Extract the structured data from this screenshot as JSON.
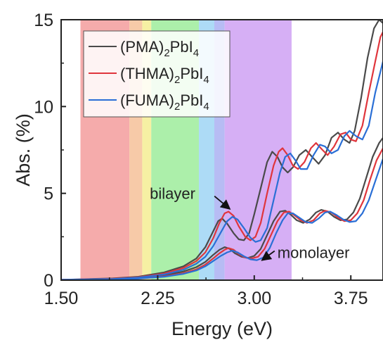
{
  "chart_data": {
    "type": "line",
    "xlabel": "Energy (eV)",
    "ylabel": "Abs. (%)",
    "xlim": [
      1.5,
      4.0
    ],
    "ylim": [
      0,
      15
    ],
    "xticks": [
      1.5,
      2.25,
      3.0,
      3.75
    ],
    "xtick_labels": [
      "1.50",
      "2.25",
      "3.00",
      "3.75"
    ],
    "yticks": [
      0,
      5,
      10,
      15
    ],
    "ytick_labels": [
      "0",
      "5",
      "10",
      "15"
    ],
    "grid": false,
    "legend_position": "top-left",
    "spectral_bands": [
      {
        "from": 1.65,
        "to": 2.03,
        "color": "#f4a6a6"
      },
      {
        "from": 2.03,
        "to": 2.13,
        "color": "#f7c7a3"
      },
      {
        "from": 2.13,
        "to": 2.2,
        "color": "#f6ef9e"
      },
      {
        "from": 2.2,
        "to": 2.57,
        "color": "#a8eea5"
      },
      {
        "from": 2.57,
        "to": 2.69,
        "color": "#a9d9f5"
      },
      {
        "from": 2.69,
        "to": 2.77,
        "color": "#b3b8f3"
      },
      {
        "from": 2.77,
        "to": 3.29,
        "color": "#d4abf4"
      }
    ],
    "series": [
      {
        "name_main": "(PMA)",
        "name_sub": "2",
        "name_mid": "PbI",
        "name_sub2": "4",
        "color": "#4a4a4a",
        "monolayer": [
          [
            1.5,
            0.02
          ],
          [
            1.9,
            0.06
          ],
          [
            2.1,
            0.12
          ],
          [
            2.3,
            0.28
          ],
          [
            2.45,
            0.5
          ],
          [
            2.55,
            0.75
          ],
          [
            2.62,
            1.05
          ],
          [
            2.68,
            1.45
          ],
          [
            2.73,
            1.75
          ],
          [
            2.77,
            1.9
          ],
          [
            2.81,
            1.8
          ],
          [
            2.85,
            1.55
          ],
          [
            2.9,
            1.35
          ],
          [
            2.95,
            1.28
          ],
          [
            3.0,
            1.4
          ],
          [
            3.05,
            1.8
          ],
          [
            3.1,
            2.6
          ],
          [
            3.15,
            3.4
          ],
          [
            3.2,
            3.95
          ],
          [
            3.24,
            4.0
          ],
          [
            3.28,
            3.8
          ],
          [
            3.33,
            3.45
          ],
          [
            3.38,
            3.3
          ],
          [
            3.43,
            3.5
          ],
          [
            3.48,
            3.9
          ],
          [
            3.52,
            4.05
          ],
          [
            3.57,
            3.95
          ],
          [
            3.62,
            3.65
          ],
          [
            3.67,
            3.45
          ],
          [
            3.72,
            3.5
          ],
          [
            3.77,
            3.9
          ],
          [
            3.82,
            4.7
          ],
          [
            3.87,
            5.9
          ],
          [
            3.92,
            7.1
          ],
          [
            3.97,
            7.9
          ],
          [
            4.0,
            8.2
          ]
        ],
        "bilayer": [
          [
            1.5,
            0.02
          ],
          [
            1.9,
            0.1
          ],
          [
            2.1,
            0.2
          ],
          [
            2.3,
            0.45
          ],
          [
            2.45,
            0.8
          ],
          [
            2.55,
            1.25
          ],
          [
            2.62,
            1.9
          ],
          [
            2.68,
            2.8
          ],
          [
            2.72,
            3.4
          ],
          [
            2.75,
            3.55
          ],
          [
            2.79,
            3.25
          ],
          [
            2.84,
            2.7
          ],
          [
            2.88,
            2.35
          ],
          [
            2.92,
            2.3
          ],
          [
            2.96,
            2.7
          ],
          [
            3.0,
            3.8
          ],
          [
            3.05,
            5.3
          ],
          [
            3.1,
            6.8
          ],
          [
            3.14,
            7.4
          ],
          [
            3.18,
            7.1
          ],
          [
            3.22,
            6.5
          ],
          [
            3.26,
            6.2
          ],
          [
            3.3,
            6.5
          ],
          [
            3.35,
            7.2
          ],
          [
            3.4,
            7.5
          ],
          [
            3.45,
            7.1
          ],
          [
            3.5,
            6.7
          ],
          [
            3.55,
            7.2
          ],
          [
            3.6,
            8.2
          ],
          [
            3.65,
            8.5
          ],
          [
            3.7,
            8.1
          ],
          [
            3.74,
            7.9
          ],
          [
            3.78,
            8.6
          ],
          [
            3.83,
            10.5
          ],
          [
            3.88,
            12.8
          ],
          [
            3.93,
            14.5
          ],
          [
            3.97,
            15.0
          ],
          [
            4.0,
            14.8
          ]
        ]
      },
      {
        "name_main": "(THMA)",
        "name_sub": "2",
        "name_mid": "PbI",
        "name_sub2": "4",
        "color": "#e0353c",
        "monolayer": [
          [
            1.5,
            0.02
          ],
          [
            1.9,
            0.05
          ],
          [
            2.1,
            0.1
          ],
          [
            2.3,
            0.22
          ],
          [
            2.45,
            0.4
          ],
          [
            2.55,
            0.62
          ],
          [
            2.62,
            0.9
          ],
          [
            2.68,
            1.25
          ],
          [
            2.73,
            1.55
          ],
          [
            2.77,
            1.75
          ],
          [
            2.8,
            1.85
          ],
          [
            2.84,
            1.75
          ],
          [
            2.88,
            1.5
          ],
          [
            2.93,
            1.3
          ],
          [
            2.98,
            1.25
          ],
          [
            3.03,
            1.35
          ],
          [
            3.08,
            1.8
          ],
          [
            3.13,
            2.6
          ],
          [
            3.18,
            3.4
          ],
          [
            3.23,
            3.9
          ],
          [
            3.27,
            3.95
          ],
          [
            3.31,
            3.75
          ],
          [
            3.36,
            3.45
          ],
          [
            3.41,
            3.3
          ],
          [
            3.46,
            3.45
          ],
          [
            3.51,
            3.85
          ],
          [
            3.55,
            4.0
          ],
          [
            3.6,
            3.9
          ],
          [
            3.65,
            3.6
          ],
          [
            3.7,
            3.4
          ],
          [
            3.75,
            3.45
          ],
          [
            3.8,
            3.85
          ],
          [
            3.85,
            4.6
          ],
          [
            3.9,
            5.8
          ],
          [
            3.95,
            6.9
          ],
          [
            4.0,
            7.6
          ]
        ],
        "bilayer": [
          [
            1.5,
            0.02
          ],
          [
            1.9,
            0.08
          ],
          [
            2.1,
            0.17
          ],
          [
            2.3,
            0.38
          ],
          [
            2.45,
            0.7
          ],
          [
            2.55,
            1.1
          ],
          [
            2.62,
            1.6
          ],
          [
            2.68,
            2.4
          ],
          [
            2.73,
            3.3
          ],
          [
            2.77,
            3.85
          ],
          [
            2.8,
            3.95
          ],
          [
            2.84,
            3.7
          ],
          [
            2.88,
            3.1
          ],
          [
            2.93,
            2.5
          ],
          [
            2.97,
            2.3
          ],
          [
            3.01,
            2.5
          ],
          [
            3.05,
            3.3
          ],
          [
            3.1,
            5.0
          ],
          [
            3.15,
            6.6
          ],
          [
            3.19,
            7.4
          ],
          [
            3.22,
            7.6
          ],
          [
            3.26,
            7.2
          ],
          [
            3.3,
            6.6
          ],
          [
            3.34,
            6.4
          ],
          [
            3.39,
            6.8
          ],
          [
            3.44,
            7.6
          ],
          [
            3.48,
            7.9
          ],
          [
            3.53,
            7.5
          ],
          [
            3.57,
            7.2
          ],
          [
            3.62,
            7.7
          ],
          [
            3.67,
            8.4
          ],
          [
            3.71,
            8.5
          ],
          [
            3.75,
            8.1
          ],
          [
            3.79,
            8.0
          ],
          [
            3.84,
            8.9
          ],
          [
            3.89,
            10.8
          ],
          [
            3.94,
            12.6
          ],
          [
            3.98,
            14.0
          ],
          [
            4.0,
            14.3
          ]
        ]
      },
      {
        "name_main": "(FUMA)",
        "name_sub": "2",
        "name_mid": "PbI",
        "name_sub2": "4",
        "color": "#2a6fd6",
        "monolayer": [
          [
            1.5,
            0.02
          ],
          [
            1.9,
            0.05
          ],
          [
            2.1,
            0.09
          ],
          [
            2.3,
            0.2
          ],
          [
            2.45,
            0.36
          ],
          [
            2.55,
            0.56
          ],
          [
            2.62,
            0.8
          ],
          [
            2.68,
            1.1
          ],
          [
            2.74,
            1.4
          ],
          [
            2.79,
            1.6
          ],
          [
            2.83,
            1.7
          ],
          [
            2.87,
            1.6
          ],
          [
            2.92,
            1.38
          ],
          [
            2.97,
            1.2
          ],
          [
            3.02,
            1.15
          ],
          [
            3.07,
            1.3
          ],
          [
            3.12,
            1.85
          ],
          [
            3.17,
            2.7
          ],
          [
            3.22,
            3.45
          ],
          [
            3.26,
            3.85
          ],
          [
            3.3,
            3.85
          ],
          [
            3.35,
            3.6
          ],
          [
            3.4,
            3.35
          ],
          [
            3.45,
            3.3
          ],
          [
            3.5,
            3.55
          ],
          [
            3.55,
            3.9
          ],
          [
            3.59,
            3.95
          ],
          [
            3.64,
            3.75
          ],
          [
            3.69,
            3.5
          ],
          [
            3.74,
            3.35
          ],
          [
            3.79,
            3.4
          ],
          [
            3.84,
            3.85
          ],
          [
            3.89,
            4.6
          ],
          [
            3.94,
            5.7
          ],
          [
            4.0,
            7.0
          ]
        ],
        "bilayer": [
          [
            1.5,
            0.02
          ],
          [
            1.9,
            0.07
          ],
          [
            2.1,
            0.15
          ],
          [
            2.3,
            0.33
          ],
          [
            2.45,
            0.6
          ],
          [
            2.55,
            0.95
          ],
          [
            2.62,
            1.35
          ],
          [
            2.68,
            1.95
          ],
          [
            2.74,
            2.75
          ],
          [
            2.79,
            3.4
          ],
          [
            2.83,
            3.65
          ],
          [
            2.87,
            3.5
          ],
          [
            2.92,
            3.0
          ],
          [
            2.97,
            2.45
          ],
          [
            3.01,
            2.2
          ],
          [
            3.05,
            2.3
          ],
          [
            3.1,
            3.0
          ],
          [
            3.15,
            4.6
          ],
          [
            3.2,
            6.2
          ],
          [
            3.24,
            7.1
          ],
          [
            3.28,
            7.3
          ],
          [
            3.32,
            6.9
          ],
          [
            3.36,
            6.4
          ],
          [
            3.41,
            6.4
          ],
          [
            3.46,
            7.2
          ],
          [
            3.51,
            7.8
          ],
          [
            3.55,
            7.7
          ],
          [
            3.6,
            7.3
          ],
          [
            3.65,
            7.5
          ],
          [
            3.7,
            8.3
          ],
          [
            3.74,
            8.6
          ],
          [
            3.79,
            8.3
          ],
          [
            3.84,
            8.1
          ],
          [
            3.89,
            8.9
          ],
          [
            3.94,
            10.8
          ],
          [
            4.0,
            12.6
          ]
        ]
      }
    ],
    "annotations": [
      {
        "text": "bilayer",
        "x": 2.68,
        "y": 5.0,
        "arrow_to": [
          2.81,
          4.1
        ]
      },
      {
        "text": "monolayer",
        "x": 3.18,
        "y": 1.6,
        "arrow_to": [
          3.06,
          1.15
        ]
      }
    ]
  }
}
